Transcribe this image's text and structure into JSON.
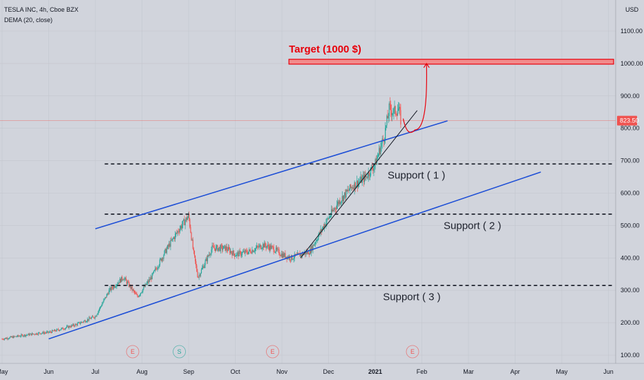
{
  "header": {
    "symbol_line": "TESLA INC, 4h, Cboe BZX",
    "indicator_line": "DEMA (20, close)",
    "currency": "USD"
  },
  "colors": {
    "background": "#d1d4dc",
    "up": "#26a69a",
    "down": "#ef5350",
    "channel": "#1e4fd6",
    "target": "#e8000b",
    "support": "#131722",
    "trend": "#131722"
  },
  "chart_data": {
    "type": "candlestick",
    "ylim": [
      90,
      1190
    ],
    "y_ticks": [
      100,
      200,
      300,
      400,
      500,
      600,
      700,
      800,
      900,
      1000,
      1100
    ],
    "y_tick_labels": [
      "100.00",
      "200.00",
      "300.00",
      "400.00",
      "500.00",
      "600.00",
      "700.00",
      "800.00",
      "900.00",
      "1000.00",
      "1100.00"
    ],
    "x_ticks": [
      {
        "label": "May",
        "t": 0.0
      },
      {
        "label": "Jun",
        "t": 1.0
      },
      {
        "label": "Jul",
        "t": 2.0
      },
      {
        "label": "Aug",
        "t": 3.0
      },
      {
        "label": "Sep",
        "t": 4.0
      },
      {
        "label": "Oct",
        "t": 5.0
      },
      {
        "label": "Nov",
        "t": 6.0
      },
      {
        "label": "Dec",
        "t": 7.0
      },
      {
        "label": "2021",
        "t": 8.0
      },
      {
        "label": "Feb",
        "t": 9.0
      },
      {
        "label": "Mar",
        "t": 10.0
      },
      {
        "label": "Apr",
        "t": 11.0
      },
      {
        "label": "May",
        "t": 12.0
      },
      {
        "label": "Jun",
        "t": 13.0
      }
    ],
    "price_path": [
      [
        0.0,
        150
      ],
      [
        0.4,
        160
      ],
      [
        0.8,
        168
      ],
      [
        1.0,
        170
      ],
      [
        1.3,
        182
      ],
      [
        1.6,
        195
      ],
      [
        2.0,
        220
      ],
      [
        2.3,
        300
      ],
      [
        2.6,
        340
      ],
      [
        2.9,
        280
      ],
      [
        3.2,
        340
      ],
      [
        3.5,
        420
      ],
      [
        3.8,
        490
      ],
      [
        4.0,
        530
      ],
      [
        4.1,
        420
      ],
      [
        4.2,
        340
      ],
      [
        4.5,
        430
      ],
      [
        4.8,
        430
      ],
      [
        5.0,
        410
      ],
      [
        5.3,
        420
      ],
      [
        5.6,
        440
      ],
      [
        5.8,
        430
      ],
      [
        6.0,
        410
      ],
      [
        6.2,
        400
      ],
      [
        6.4,
        410
      ],
      [
        6.6,
        420
      ],
      [
        6.9,
        500
      ],
      [
        7.2,
        570
      ],
      [
        7.5,
        620
      ],
      [
        7.8,
        650
      ],
      [
        8.0,
        690
      ],
      [
        8.2,
        780
      ],
      [
        8.3,
        860
      ],
      [
        8.4,
        850
      ],
      [
        8.5,
        860
      ],
      [
        8.55,
        823.5
      ]
    ],
    "last_price": 823.5,
    "last_price_label": "823.50",
    "channel_upper": {
      "from": [
        2.0,
        490
      ],
      "to": [
        9.55,
        823
      ]
    },
    "channel_lower": {
      "from": [
        1.0,
        150
      ],
      "to": [
        11.55,
        665
      ]
    },
    "trend_line": {
      "from": [
        6.4,
        400
      ],
      "to": [
        8.9,
        855
      ]
    },
    "support_levels": [
      {
        "label": "Support ( 1 )",
        "price": 690,
        "from_t": 2.2,
        "label_t": 8.0,
        "label_price": 655
      },
      {
        "label": "Support ( 2 )",
        "price": 535,
        "from_t": 2.2,
        "label_t": 9.2,
        "label_price": 500
      },
      {
        "label": "Support ( 3 )",
        "price": 315,
        "from_t": 2.2,
        "label_t": 7.9,
        "label_price": 280
      }
    ],
    "target": {
      "label": "Target (1000 $)",
      "price_low": 998,
      "price_high": 1013,
      "from_t": 6.15
    },
    "projection": {
      "start": [
        8.6,
        830
      ],
      "bottom": [
        8.85,
        795
      ],
      "end": [
        9.1,
        1000
      ]
    },
    "event_markers": [
      {
        "label": "E",
        "t": 2.8,
        "color": "#ef5350"
      },
      {
        "label": "S",
        "t": 3.8,
        "color": "#26a69a"
      },
      {
        "label": "E",
        "t": 5.8,
        "color": "#ef5350"
      },
      {
        "label": "E",
        "t": 8.8,
        "color": "#ef5350"
      }
    ]
  }
}
